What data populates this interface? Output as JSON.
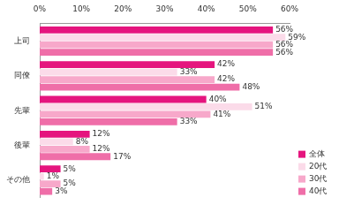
{
  "chart_data": {
    "type": "bar",
    "orientation": "horizontal",
    "categories": [
      "上司",
      "同僚",
      "先輩",
      "後輩",
      "その他"
    ],
    "series": [
      {
        "name": "全体",
        "color": "#e5157e",
        "values": [
          56,
          42,
          40,
          12,
          5
        ],
        "value_labels": [
          "56%",
          "42%",
          "40%",
          "12%",
          "5%"
        ]
      },
      {
        "name": "20代",
        "color": "#fbdbe9",
        "values": [
          59,
          33,
          51,
          8,
          1
        ],
        "value_labels": [
          "59%",
          "33%",
          "51%",
          "8%",
          "1%"
        ]
      },
      {
        "name": "30代",
        "color": "#f7a8ca",
        "values": [
          56,
          42,
          41,
          12,
          5
        ],
        "value_labels": [
          "56%",
          "42%",
          "41%",
          "12%",
          "5%"
        ]
      },
      {
        "name": "40代",
        "color": "#ef6ea8",
        "values": [
          56,
          48,
          33,
          17,
          3
        ],
        "value_labels": [
          "56%",
          "48%",
          "33%",
          "17%",
          "3%"
        ]
      }
    ],
    "xlim": [
      0,
      60
    ],
    "xticks": [
      {
        "value": 0,
        "label": "0%"
      },
      {
        "value": 10,
        "label": "10%"
      },
      {
        "value": 20,
        "label": "20%"
      },
      {
        "value": 30,
        "label": "30%"
      },
      {
        "value": 40,
        "label": "40%"
      },
      {
        "value": 50,
        "label": "50%"
      },
      {
        "value": 60,
        "label": "60%"
      }
    ],
    "grid": false,
    "legend": "lower right",
    "data_labels": true
  }
}
